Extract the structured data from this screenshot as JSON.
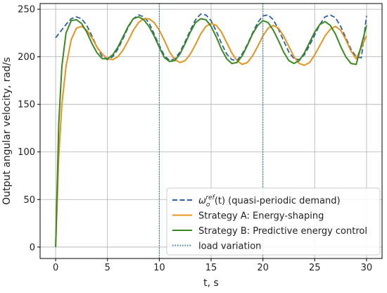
{
  "chart_data": {
    "type": "line",
    "title": "",
    "xlabel": "t, s",
    "ylabel": "Output angular velocity, rad/s",
    "xlim": [
      -1.5,
      31.5
    ],
    "ylim": [
      -12,
      256
    ],
    "x_ticks": [
      0,
      5,
      10,
      15,
      20,
      25,
      30
    ],
    "y_ticks": [
      0,
      50,
      100,
      150,
      200,
      250
    ],
    "grid": true,
    "legend_position": "bottom-right",
    "series": [
      {
        "name": "ω_o^ref(t) (quasi-periodic demand)",
        "legend_main": "ω",
        "legend_sub": "o",
        "legend_sup": "ref",
        "legend_rest": "(t) (quasi-periodic demand)",
        "color": "#2f5fa7",
        "dash": "dashed",
        "x": [
          0,
          0.5,
          1,
          1.5,
          2,
          2.5,
          3,
          3.5,
          4,
          4.5,
          5,
          5.5,
          6,
          6.5,
          7,
          7.5,
          8,
          8.5,
          9,
          9.5,
          10,
          10.5,
          11,
          11.5,
          12,
          12.5,
          13,
          13.5,
          14,
          14.5,
          15,
          15.5,
          16,
          16.5,
          17,
          17.5,
          18,
          18.5,
          19,
          19.5,
          20,
          20.5,
          21,
          21.5,
          22,
          22.5,
          23,
          23.5,
          24,
          24.5,
          25,
          25.5,
          26,
          26.5,
          27,
          27.5,
          28,
          28.5,
          29,
          29.5,
          30
        ],
        "y": [
          220,
          227,
          234,
          240,
          242,
          240,
          233,
          222,
          210,
          200,
          197,
          200,
          208,
          219,
          231,
          240,
          244,
          242,
          236,
          224,
          212,
          201,
          196,
          198,
          205,
          216,
          228,
          239,
          245,
          244,
          238,
          227,
          214,
          203,
          197,
          196,
          203,
          213,
          225,
          236,
          243,
          244,
          239,
          229,
          217,
          205,
          198,
          197,
          202,
          212,
          223,
          234,
          242,
          244,
          241,
          232,
          220,
          208,
          200,
          199,
          243
        ]
      },
      {
        "name": "Strategy A: Energy-shaping",
        "color": "#e69320",
        "dash": "solid",
        "x": [
          0,
          0.3,
          0.6,
          1,
          1.5,
          2,
          2.5,
          3,
          3.5,
          4,
          4.5,
          5,
          5.5,
          6,
          6.5,
          7,
          7.5,
          8,
          8.5,
          9,
          9.5,
          10,
          10.5,
          11,
          11.5,
          12,
          12.5,
          13,
          13.5,
          14,
          14.5,
          15,
          15.5,
          16,
          16.5,
          17,
          17.5,
          18,
          18.5,
          19,
          19.5,
          20,
          20.5,
          21,
          21.5,
          22,
          22.5,
          23,
          23.5,
          24,
          24.5,
          25,
          25.5,
          26,
          26.5,
          27,
          27.5,
          28,
          28.5,
          29,
          29.5,
          30
        ],
        "y": [
          0,
          95,
          150,
          190,
          218,
          230,
          232,
          228,
          220,
          210,
          203,
          198,
          197,
          200,
          207,
          217,
          228,
          236,
          240,
          240,
          236,
          228,
          217,
          205,
          197,
          194,
          196,
          203,
          213,
          224,
          232,
          235,
          233,
          226,
          215,
          204,
          196,
          192,
          194,
          201,
          211,
          222,
          230,
          233,
          230,
          222,
          211,
          200,
          193,
          191,
          194,
          202,
          212,
          222,
          229,
          232,
          228,
          218,
          206,
          198,
          210,
          222
        ]
      },
      {
        "name": "Strategy B: Predictive energy control",
        "color": "#3a8a1f",
        "dash": "solid",
        "x": [
          0,
          0.3,
          0.6,
          1,
          1.5,
          2,
          2.5,
          3,
          3.5,
          4,
          4.5,
          5,
          5.5,
          6,
          6.5,
          7,
          7.5,
          8,
          8.5,
          9,
          9.5,
          10,
          10.5,
          11,
          11.5,
          12,
          12.5,
          13,
          13.5,
          14,
          14.5,
          15,
          15.5,
          16,
          16.5,
          17,
          17.5,
          18,
          18.5,
          19,
          19.5,
          20,
          20.5,
          21,
          21.5,
          22,
          22.5,
          23,
          23.5,
          24,
          24.5,
          25,
          25.5,
          26,
          26.5,
          27,
          27.5,
          28,
          28.5,
          29,
          29.5,
          30
        ],
        "y": [
          0,
          130,
          190,
          225,
          238,
          239,
          235,
          226,
          214,
          204,
          198,
          198,
          202,
          210,
          221,
          232,
          240,
          242,
          239,
          232,
          222,
          210,
          199,
          195,
          196,
          203,
          214,
          226,
          236,
          240,
          239,
          232,
          221,
          208,
          198,
          193,
          194,
          201,
          212,
          224,
          233,
          238,
          236,
          228,
          217,
          205,
          196,
          193,
          196,
          204,
          215,
          226,
          234,
          237,
          233,
          224,
          211,
          200,
          193,
          192,
          212,
          233
        ]
      },
      {
        "name": "load variation",
        "color": "#2f7fb5",
        "dash": "dotted",
        "vlines": [
          10,
          20
        ]
      }
    ]
  }
}
